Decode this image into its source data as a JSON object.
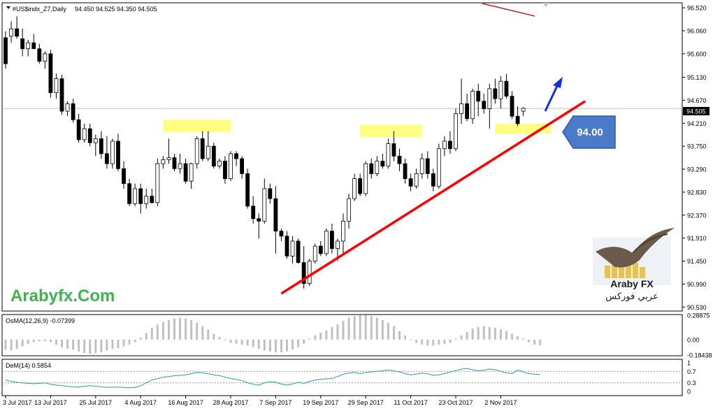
{
  "chart_data": {
    "type": "candlestick",
    "symbol_header": "#US$indx_Z7,Daily",
    "ohlc_header": {
      "open": 94.45,
      "high": 94.525,
      "low": 94.35,
      "close": 94.505
    },
    "current_price_label": "94.505",
    "y_ticks": [
      "96.520",
      "96.060",
      "95.600",
      "95.130",
      "94.670",
      "94.210",
      "93.750",
      "93.290",
      "92.830",
      "92.370",
      "91.910",
      "91.450",
      "90.990",
      "90.530"
    ],
    "ylim": [
      90.45,
      96.62
    ],
    "x_tick_labels": [
      "3 Jul 2017",
      "13 Jul 2017",
      "25 Jul 2017",
      "4 Aug 2017",
      "16 Aug 2017",
      "28 Aug 2017",
      "7 Sep 2017",
      "19 Sep 2017",
      "29 Sep 2017",
      "11 Oct 2017",
      "23 Oct 2017",
      "2 Nov 2017"
    ],
    "x_tick_index": [
      0,
      8,
      16,
      24,
      32,
      40,
      48,
      56,
      64,
      72,
      80,
      88
    ],
    "candles": [
      [
        95.92,
        96.05,
        95.3,
        95.4
      ],
      [
        95.95,
        96.25,
        95.82,
        96.1
      ],
      [
        96.1,
        96.35,
        95.9,
        95.95
      ],
      [
        95.9,
        96.1,
        95.55,
        95.7
      ],
      [
        95.7,
        95.88,
        95.55,
        95.82
      ],
      [
        95.82,
        96.0,
        95.7,
        95.7
      ],
      [
        95.7,
        95.8,
        95.4,
        95.45
      ],
      [
        95.45,
        95.65,
        95.3,
        95.6
      ],
      [
        95.6,
        95.68,
        94.72,
        94.82
      ],
      [
        94.82,
        95.2,
        94.7,
        95.1
      ],
      [
        95.1,
        95.18,
        94.38,
        94.45
      ],
      [
        94.45,
        94.65,
        94.35,
        94.6
      ],
      [
        94.6,
        94.7,
        94.22,
        94.28
      ],
      [
        94.28,
        94.4,
        93.82,
        93.88
      ],
      [
        93.88,
        94.2,
        93.82,
        94.1
      ],
      [
        94.1,
        94.2,
        93.75,
        93.82
      ],
      [
        93.82,
        93.98,
        93.55,
        93.9
      ],
      [
        93.9,
        94.05,
        93.5,
        93.6
      ],
      [
        93.6,
        93.95,
        93.3,
        93.4
      ],
      [
        93.4,
        93.9,
        93.3,
        93.85
      ],
      [
        93.85,
        94.0,
        93.25,
        93.3
      ],
      [
        93.3,
        93.45,
        92.9,
        93.0
      ],
      [
        93.0,
        93.1,
        92.55,
        92.6
      ],
      [
        92.6,
        93.0,
        92.55,
        92.9
      ],
      [
        92.9,
        93.0,
        92.4,
        92.6
      ],
      [
        92.6,
        92.9,
        92.5,
        92.75
      ],
      [
        92.75,
        92.9,
        92.6,
        92.62
      ],
      [
        92.62,
        93.5,
        92.55,
        93.4
      ],
      [
        93.4,
        93.55,
        93.3,
        93.48
      ],
      [
        93.48,
        93.9,
        93.4,
        93.52
      ],
      [
        93.52,
        93.6,
        93.25,
        93.3
      ],
      [
        93.3,
        93.6,
        93.2,
        93.4
      ],
      [
        93.4,
        93.5,
        93.0,
        93.05
      ],
      [
        93.05,
        93.42,
        92.9,
        93.4
      ],
      [
        93.4,
        93.95,
        93.3,
        93.9
      ],
      [
        93.9,
        94.05,
        93.45,
        93.5
      ],
      [
        93.5,
        94.05,
        93.45,
        93.75
      ],
      [
        93.75,
        93.82,
        93.3,
        93.35
      ],
      [
        93.35,
        93.5,
        93.3,
        93.45
      ],
      [
        93.45,
        93.55,
        93.0,
        93.1
      ],
      [
        93.1,
        93.65,
        93.05,
        93.6
      ],
      [
        93.6,
        93.65,
        93.35,
        93.5
      ],
      [
        93.5,
        93.55,
        93.1,
        93.2
      ],
      [
        93.2,
        93.3,
        92.5,
        92.55
      ],
      [
        92.55,
        92.75,
        92.2,
        92.3
      ],
      [
        92.3,
        92.4,
        91.9,
        92.25
      ],
      [
        92.25,
        93.1,
        92.2,
        92.9
      ],
      [
        92.9,
        93.0,
        92.6,
        92.7
      ],
      [
        92.7,
        92.95,
        91.6,
        92.05
      ],
      [
        92.05,
        92.1,
        91.85,
        91.95
      ],
      [
        91.95,
        92.05,
        91.5,
        91.55
      ],
      [
        91.55,
        91.95,
        91.4,
        91.85
      ],
      [
        91.85,
        91.9,
        91.4,
        91.42
      ],
      [
        91.42,
        91.75,
        90.9,
        91.0
      ],
      [
        91.0,
        91.5,
        90.95,
        91.45
      ],
      [
        91.45,
        91.8,
        91.4,
        91.75
      ],
      [
        91.75,
        91.85,
        91.55,
        91.6
      ],
      [
        91.6,
        92.1,
        91.55,
        92.05
      ],
      [
        92.05,
        92.2,
        91.6,
        91.7
      ],
      [
        91.7,
        91.9,
        91.45,
        91.85
      ],
      [
        91.85,
        92.4,
        91.6,
        92.25
      ],
      [
        92.25,
        92.8,
        92.1,
        92.7
      ],
      [
        92.7,
        93.2,
        92.65,
        93.1
      ],
      [
        93.1,
        93.2,
        92.75,
        92.8
      ],
      [
        92.8,
        93.45,
        92.75,
        93.4
      ],
      [
        93.4,
        93.5,
        93.1,
        93.2
      ],
      [
        93.2,
        93.55,
        93.15,
        93.45
      ],
      [
        93.45,
        93.6,
        93.3,
        93.35
      ],
      [
        93.35,
        93.9,
        93.3,
        93.8
      ],
      [
        93.8,
        94.05,
        93.45,
        93.55
      ],
      [
        93.55,
        93.7,
        93.25,
        93.4
      ],
      [
        93.4,
        93.5,
        93.0,
        93.1
      ],
      [
        93.1,
        93.2,
        92.85,
        92.95
      ],
      [
        92.95,
        93.3,
        92.9,
        93.2
      ],
      [
        93.2,
        93.6,
        93.1,
        93.5
      ],
      [
        93.5,
        93.65,
        93.1,
        93.2
      ],
      [
        93.2,
        93.3,
        92.85,
        92.95
      ],
      [
        92.95,
        93.8,
        92.9,
        93.7
      ],
      [
        93.7,
        93.95,
        93.55,
        93.85
      ],
      [
        93.85,
        94.05,
        93.6,
        93.7
      ],
      [
        93.7,
        94.5,
        93.65,
        94.4
      ],
      [
        94.4,
        95.1,
        94.2,
        94.6
      ],
      [
        94.6,
        94.8,
        94.25,
        94.3
      ],
      [
        94.3,
        94.9,
        94.2,
        94.85
      ],
      [
        94.85,
        95.0,
        94.35,
        94.65
      ],
      [
        94.65,
        94.8,
        94.4,
        94.5
      ],
      [
        94.5,
        95.0,
        94.1,
        94.9
      ],
      [
        94.9,
        95.1,
        94.6,
        94.7
      ],
      [
        94.7,
        95.15,
        94.5,
        95.05
      ],
      [
        95.05,
        95.2,
        94.7,
        94.75
      ],
      [
        94.75,
        94.85,
        94.3,
        94.35
      ],
      [
        94.35,
        94.55,
        94.15,
        94.2
      ],
      [
        94.45,
        94.53,
        94.35,
        94.51
      ]
    ],
    "trendline": {
      "from_index": 49,
      "from_price": 90.8,
      "to_index": 103,
      "to_price": 94.65,
      "color": "#ff0000"
    },
    "top_line": {
      "color": "#b22222"
    },
    "support_zones": [
      {
        "from_index": 28,
        "to_index": 40,
        "low": 94.03,
        "high": 94.28
      },
      {
        "from_index": 63,
        "to_index": 74,
        "low": 93.93,
        "high": 94.18
      },
      {
        "from_index": 87,
        "to_index": 97,
        "low": 94.0,
        "high": 94.2
      }
    ],
    "callout_label": "94.00",
    "osma": {
      "label": "OsMA(12,26,9) -0.07399",
      "ticks": [
        "0.28875",
        "0.00",
        "-0.18438"
      ],
      "ylim": [
        -0.184,
        0.289
      ],
      "values": [
        -0.12,
        -0.13,
        -0.11,
        -0.08,
        -0.05,
        -0.03,
        -0.02,
        -0.02,
        -0.03,
        -0.06,
        -0.09,
        -0.11,
        -0.12,
        -0.14,
        -0.16,
        -0.17,
        -0.16,
        -0.15,
        -0.13,
        -0.11,
        -0.1,
        -0.08,
        -0.06,
        -0.03,
        0.02,
        0.08,
        0.14,
        0.18,
        0.21,
        0.23,
        0.25,
        0.26,
        0.25,
        0.23,
        0.2,
        0.16,
        0.12,
        0.07,
        0.03,
        -0.01,
        -0.04,
        -0.05,
        -0.06,
        -0.07,
        -0.09,
        -0.11,
        -0.13,
        -0.14,
        -0.15,
        -0.15,
        -0.14,
        -0.12,
        -0.09,
        -0.05,
        0.01,
        0.05,
        0.08,
        0.11,
        0.15,
        0.18,
        0.22,
        0.26,
        0.28,
        0.29,
        0.29,
        0.28,
        0.26,
        0.23,
        0.2,
        0.16,
        0.1,
        0.05,
        0.0,
        -0.04,
        -0.06,
        -0.07,
        -0.07,
        -0.06,
        -0.05,
        -0.04,
        0.01,
        0.05,
        0.09,
        0.13,
        0.15,
        0.16,
        0.15,
        0.14,
        0.12,
        0.1,
        0.07,
        0.04,
        0.01,
        -0.03,
        -0.06,
        -0.07
      ]
    },
    "dem": {
      "label": "DeM(14) 0.5854",
      "ticks": [
        "1",
        "0.7",
        "0.3",
        "0"
      ],
      "ylim": [
        0,
        1
      ],
      "levels": [
        0.7,
        0.3
      ],
      "values": [
        0.4,
        0.35,
        0.32,
        0.3,
        0.28,
        0.27,
        0.28,
        0.3,
        0.25,
        0.22,
        0.2,
        0.18,
        0.16,
        0.15,
        0.18,
        0.2,
        0.18,
        0.16,
        0.14,
        0.15,
        0.15,
        0.14,
        0.13,
        0.14,
        0.2,
        0.3,
        0.4,
        0.45,
        0.5,
        0.52,
        0.55,
        0.56,
        0.58,
        0.62,
        0.66,
        0.65,
        0.62,
        0.58,
        0.55,
        0.5,
        0.45,
        0.42,
        0.38,
        0.3,
        0.25,
        0.22,
        0.3,
        0.34,
        0.32,
        0.26,
        0.22,
        0.26,
        0.32,
        0.28,
        0.35,
        0.4,
        0.42,
        0.44,
        0.45,
        0.52,
        0.6,
        0.64,
        0.66,
        0.62,
        0.66,
        0.68,
        0.7,
        0.72,
        0.75,
        0.72,
        0.68,
        0.62,
        0.58,
        0.6,
        0.64,
        0.62,
        0.56,
        0.58,
        0.62,
        0.68,
        0.72,
        0.78,
        0.8,
        0.76,
        0.72,
        0.74,
        0.78,
        0.76,
        0.7,
        0.65,
        0.62,
        0.75,
        0.68,
        0.62,
        0.6,
        0.59
      ]
    }
  },
  "brand": {
    "watermark": "Arabyfx.Com",
    "logo_latin": "Araby FX",
    "logo_arabic": "عربي فوركس"
  },
  "colors": {
    "bull": "#ffffff",
    "bear": "#000000",
    "zone": "#ffff80",
    "watermark": "#3fb34f",
    "callout": "#4a7ac8",
    "arrow_up": "#1030e0",
    "osma_bar": "#c0c0c0",
    "dem_line": "#20a0b0",
    "price_line": "#c0c0c0"
  }
}
